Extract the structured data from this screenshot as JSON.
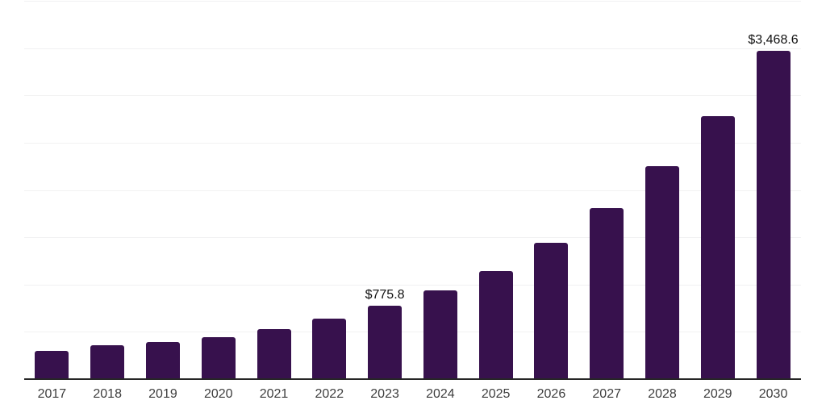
{
  "colors": {
    "bar": "#37114d",
    "axis_line": "#262626",
    "gridline": "#f1f1f2",
    "year_label": "#3d3d3d",
    "value_label": "#111111",
    "background": "#ffffff"
  },
  "chart_data": {
    "type": "bar",
    "title": "",
    "xlabel": "",
    "ylabel": "",
    "categories": [
      "2017",
      "2018",
      "2019",
      "2020",
      "2021",
      "2022",
      "2023",
      "2024",
      "2025",
      "2026",
      "2027",
      "2028",
      "2029",
      "2030"
    ],
    "values": [
      295,
      360,
      392,
      448,
      533,
      639,
      775.8,
      940,
      1147,
      1442,
      1806,
      2251,
      2785,
      3468.6
    ],
    "data_labels": {
      "2023": "$775.8",
      "2030": "$3,468.6"
    },
    "ylim": [
      0,
      4000
    ],
    "grid": true,
    "grid_step": 500,
    "gridline_values": [
      500,
      1000,
      1500,
      2000,
      2500,
      3000,
      3500,
      4000
    ],
    "legend_position": "none",
    "bar_corner_radius_px": 3
  }
}
